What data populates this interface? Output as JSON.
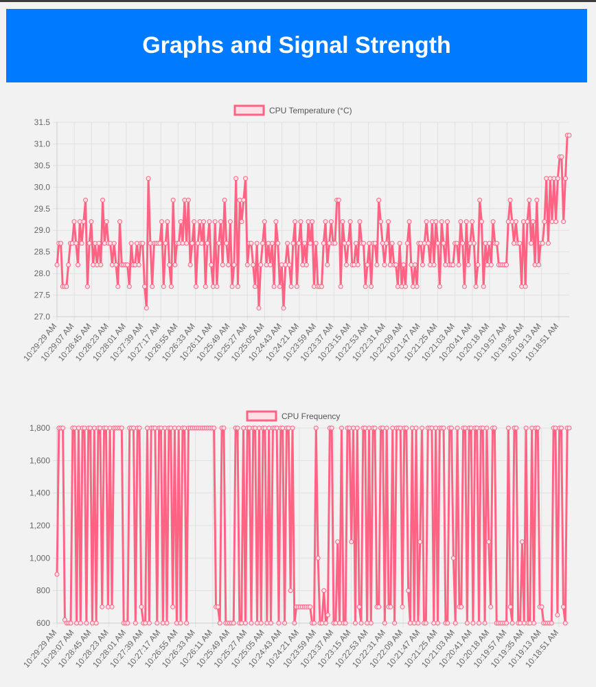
{
  "page": {
    "title": "Graphs and Signal Strength"
  },
  "colors": {
    "header_bg": "#007bff",
    "line": "#ff6384",
    "point_fill": "#ffe0e6",
    "grid": "#e0e0e0"
  },
  "chart_data": [
    {
      "type": "line",
      "legend": "CPU Temperature (°C)",
      "legend_position": "top",
      "grid": true,
      "ylim": [
        27.0,
        31.5
      ],
      "yticks": [
        "27.0",
        "27.5",
        "28.0",
        "28.5",
        "29.0",
        "29.5",
        "30.0",
        "30.5",
        "31.0",
        "31.5"
      ],
      "ytick_values": [
        27.0,
        27.5,
        28.0,
        28.5,
        29.0,
        29.5,
        30.0,
        30.5,
        31.0,
        31.5
      ],
      "xtick_labels": [
        "10:29:29 AM",
        "10:29:07 AM",
        "10:28:45 AM",
        "10:28:23 AM",
        "10:28:01 AM",
        "10:27:39 AM",
        "10:27:17 AM",
        "10:26:55 AM",
        "10:26:33 AM",
        "10:26:11 AM",
        "10:25:49 AM",
        "10:25:27 AM",
        "10:25:05 AM",
        "10:24:43 AM",
        "10:24:21 AM",
        "10:23:59 AM",
        "10:23:37 AM",
        "10:23:15 AM",
        "10:22:53 AM",
        "10:22:31 AM",
        "10:22:09 AM",
        "10:21:47 AM",
        "10:21:25 AM",
        "10:21:03 AM",
        "10:20:41 AM",
        "10:20:18 AM",
        "10:19:57 AM",
        "10:19:35 AM",
        "10:19:13 AM",
        "10:18:51 AM"
      ],
      "values": [
        28.2,
        28.7,
        28.7,
        27.7,
        27.7,
        27.7,
        28.2,
        28.7,
        28.7,
        29.2,
        28.7,
        28.2,
        29.2,
        28.7,
        29.2,
        29.7,
        27.7,
        28.7,
        29.2,
        28.2,
        28.7,
        28.2,
        28.7,
        28.2,
        29.7,
        28.7,
        29.2,
        28.7,
        28.7,
        28.2,
        28.7,
        28.2,
        27.7,
        29.2,
        28.2,
        28.2,
        28.2,
        28.2,
        27.7,
        28.7,
        28.2,
        28.2,
        28.7,
        28.2,
        28.7,
        28.7,
        27.7,
        27.2,
        30.2,
        28.7,
        27.7,
        28.7,
        28.7,
        28.7,
        28.7,
        29.2,
        27.7,
        28.7,
        29.2,
        28.2,
        27.7,
        29.7,
        28.2,
        28.7,
        28.7,
        29.2,
        28.7,
        29.7,
        28.7,
        29.7,
        28.2,
        28.7,
        29.2,
        27.7,
        28.7,
        29.2,
        28.7,
        29.2,
        27.7,
        28.7,
        29.2,
        28.2,
        27.7,
        29.2,
        27.7,
        28.7,
        29.2,
        28.2,
        29.7,
        28.7,
        28.2,
        29.2,
        27.7,
        28.2,
        30.2,
        27.7,
        29.7,
        29.2,
        29.7,
        30.2,
        28.2,
        28.7,
        28.7,
        28.2,
        27.7,
        28.7,
        27.2,
        28.2,
        28.7,
        29.2,
        28.2,
        28.7,
        28.2,
        28.7,
        27.7,
        29.2,
        28.7,
        27.7,
        28.2,
        27.2,
        28.2,
        28.7,
        28.2,
        27.7,
        28.7,
        29.2,
        27.7,
        28.7,
        29.2,
        28.2,
        28.7,
        28.2,
        29.2,
        28.7,
        29.2,
        27.7,
        28.7,
        27.7,
        27.7,
        27.7,
        28.7,
        29.2,
        28.2,
        28.7,
        29.2,
        28.7,
        28.7,
        29.7,
        29.7,
        27.7,
        29.2,
        28.7,
        28.2,
        28.7,
        29.2,
        28.2,
        28.2,
        28.7,
        28.2,
        29.2,
        28.7,
        28.7,
        27.7,
        28.2,
        28.7,
        27.7,
        28.7,
        28.7,
        28.2,
        29.7,
        29.2,
        28.7,
        28.2,
        28.7,
        29.2,
        28.2,
        28.7,
        28.2,
        28.2,
        27.7,
        28.7,
        27.7,
        28.2,
        27.7,
        28.7,
        29.2,
        28.2,
        27.7,
        28.2,
        27.7,
        28.7,
        28.7,
        28.2,
        28.7,
        29.2,
        28.7,
        28.2,
        29.2,
        28.2,
        29.2,
        28.7,
        27.7,
        29.2,
        28.7,
        28.2,
        29.2,
        28.2,
        28.2,
        28.2,
        28.7,
        28.7,
        28.2,
        29.2,
        28.7,
        27.7,
        29.2,
        28.2,
        28.7,
        29.2,
        28.7,
        27.7,
        28.2,
        29.7,
        29.2,
        27.7,
        28.7,
        28.2,
        28.7,
        28.2,
        29.2,
        28.7,
        28.7,
        28.2,
        28.2,
        28.2,
        28.2,
        28.2,
        29.2,
        29.7,
        29.2,
        28.7,
        29.2,
        28.7,
        28.7,
        27.7,
        29.2,
        27.7,
        29.2,
        29.7,
        28.7,
        29.2,
        28.2,
        29.7,
        28.2,
        28.7,
        28.7,
        29.2,
        30.2,
        28.7,
        30.2,
        29.2,
        30.2,
        29.2,
        30.2,
        30.7,
        30.7,
        29.2,
        30.2,
        31.2,
        31.2
      ]
    },
    {
      "type": "line",
      "legend": "CPU Frequency",
      "legend_position": "top",
      "grid": true,
      "ylim": [
        600,
        1800
      ],
      "yticks": [
        "600",
        "800",
        "1,000",
        "1,200",
        "1,400",
        "1,600",
        "1,800"
      ],
      "ytick_values": [
        600,
        800,
        1000,
        1200,
        1400,
        1600,
        1800
      ],
      "xtick_labels": [
        "10:29:29 AM",
        "10:29:07 AM",
        "10:28:45 AM",
        "10:28:23 AM",
        "10:28:01 AM",
        "10:27:39 AM",
        "10:27:17 AM",
        "10:26:55 AM",
        "10:26:33 AM",
        "10:26:11 AM",
        "10:25:49 AM",
        "10:25:27 AM",
        "10:25:05 AM",
        "10:24:43 AM",
        "10:24:21 AM",
        "10:23:59 AM",
        "10:23:37 AM",
        "10:23:15 AM",
        "10:22:53 AM",
        "10:22:31 AM",
        "10:22:09 AM",
        "10:21:47 AM",
        "10:21:25 AM",
        "10:21:03 AM",
        "10:20:41 AM",
        "10:20:18 AM",
        "10:19:57 AM",
        "10:19:35 AM",
        "10:19:13 AM",
        "10:18:51 AM"
      ],
      "values": [
        900,
        1800,
        1800,
        1800,
        620,
        600,
        600,
        600,
        1800,
        1800,
        600,
        1800,
        600,
        1800,
        1800,
        600,
        1800,
        1800,
        600,
        1800,
        600,
        1800,
        1800,
        700,
        1800,
        1800,
        700,
        1800,
        700,
        1800,
        1800,
        1800,
        1800,
        1800,
        600,
        600,
        600,
        1800,
        1800,
        1800,
        600,
        1800,
        1800,
        700,
        600,
        600,
        1800,
        600,
        1800,
        1800,
        1800,
        600,
        1800,
        1800,
        600,
        1800,
        600,
        1800,
        1800,
        700,
        1800,
        600,
        1800,
        600,
        1800,
        1800,
        600,
        1800,
        1800,
        1800,
        1800,
        1800,
        1800,
        1800,
        1800,
        1800,
        1800,
        1800,
        1800,
        1800,
        1800,
        700,
        700,
        600,
        1800,
        1800,
        600,
        600,
        600,
        600,
        600,
        1800,
        1800,
        600,
        600,
        1800,
        600,
        1800,
        1800,
        600,
        1800,
        1800,
        600,
        1800,
        600,
        1800,
        1800,
        600,
        1800,
        600,
        1800,
        1800,
        1800,
        600,
        1800,
        1800,
        600,
        1800,
        1800,
        800,
        1800,
        600,
        700,
        700,
        700,
        700,
        700,
        700,
        700,
        700,
        600,
        600,
        1800,
        1000,
        600,
        600,
        800,
        600,
        650,
        1800,
        1800,
        600,
        600,
        1100,
        600,
        1800,
        600,
        600,
        1800,
        1800,
        1100,
        1800,
        600,
        1800,
        700,
        600,
        1800,
        1800,
        600,
        1800,
        600,
        1800,
        1800,
        700,
        700,
        1800,
        1800,
        600,
        1800,
        700,
        700,
        1800,
        600,
        1800,
        1800,
        1800,
        700,
        1800,
        1800,
        800,
        600,
        1800,
        600,
        1800,
        600,
        1100,
        1800,
        600,
        600,
        1800,
        1800,
        1800,
        600,
        1800,
        600,
        1800,
        1800,
        1800,
        600,
        600,
        1800,
        1800,
        1000,
        600,
        1800,
        700,
        700,
        1800,
        1800,
        600,
        1800,
        1800,
        600,
        1800,
        1800,
        600,
        1800,
        1800,
        600,
        1800,
        1100,
        700,
        1800,
        1800,
        600,
        600,
        600,
        600,
        600,
        600,
        1800,
        700,
        600,
        1800,
        1800,
        600,
        600,
        1100,
        600,
        1800,
        600,
        600,
        1800,
        600,
        1800,
        1800,
        700,
        700,
        600,
        600,
        600,
        600,
        600,
        1800,
        1800,
        650,
        1800,
        1800,
        700,
        600,
        1800,
        1800
      ]
    }
  ]
}
